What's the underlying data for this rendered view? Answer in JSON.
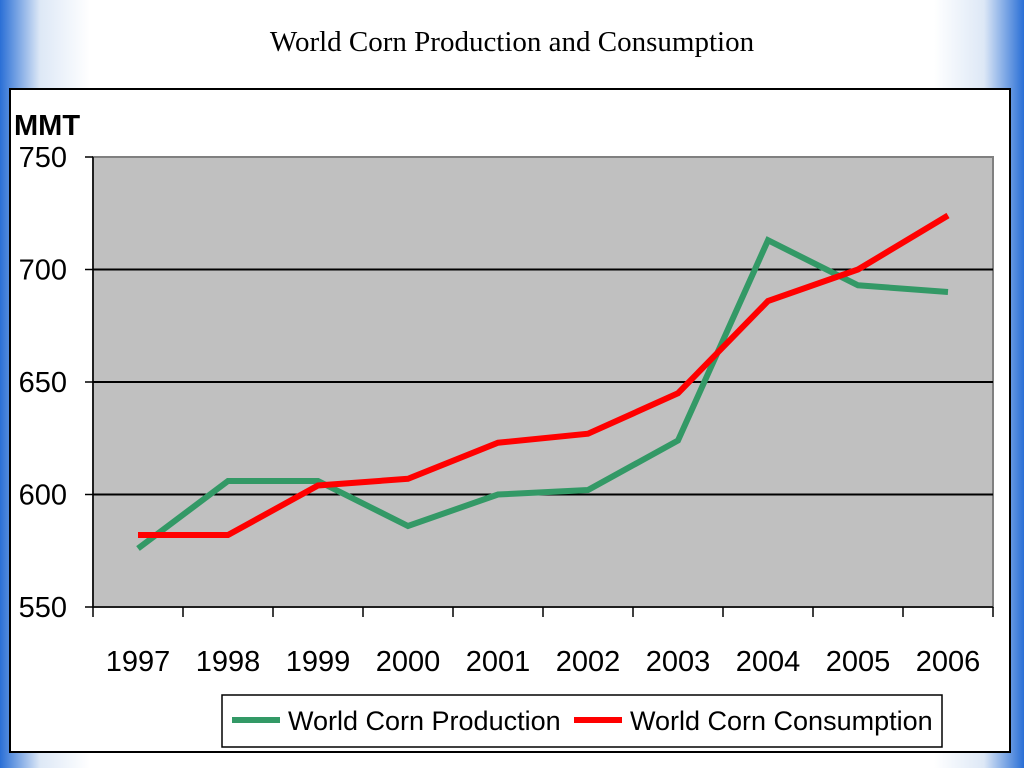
{
  "slide": {
    "title": "World Corn Production and Consumption"
  },
  "chart_data": {
    "type": "line",
    "title": "World Corn Production and Consumption",
    "xlabel": "",
    "ylabel": "MMT",
    "categories": [
      "1997",
      "1998",
      "1999",
      "2000",
      "2001",
      "2002",
      "2003",
      "2004",
      "2005",
      "2006"
    ],
    "ylim": [
      550,
      750
    ],
    "yticks": [
      550,
      600,
      650,
      700,
      750
    ],
    "grid": true,
    "legend": "bottom",
    "plot_background": "#c0c0c0",
    "series": [
      {
        "name": "World Corn Production",
        "color": "#339966",
        "values": [
          576,
          606,
          606,
          586,
          600,
          602,
          624,
          713,
          693,
          690
        ]
      },
      {
        "name": "World Corn Consumption",
        "color": "#ff0000",
        "values": [
          582,
          582,
          604,
          607,
          623,
          627,
          645,
          686,
          700,
          724
        ]
      }
    ]
  }
}
